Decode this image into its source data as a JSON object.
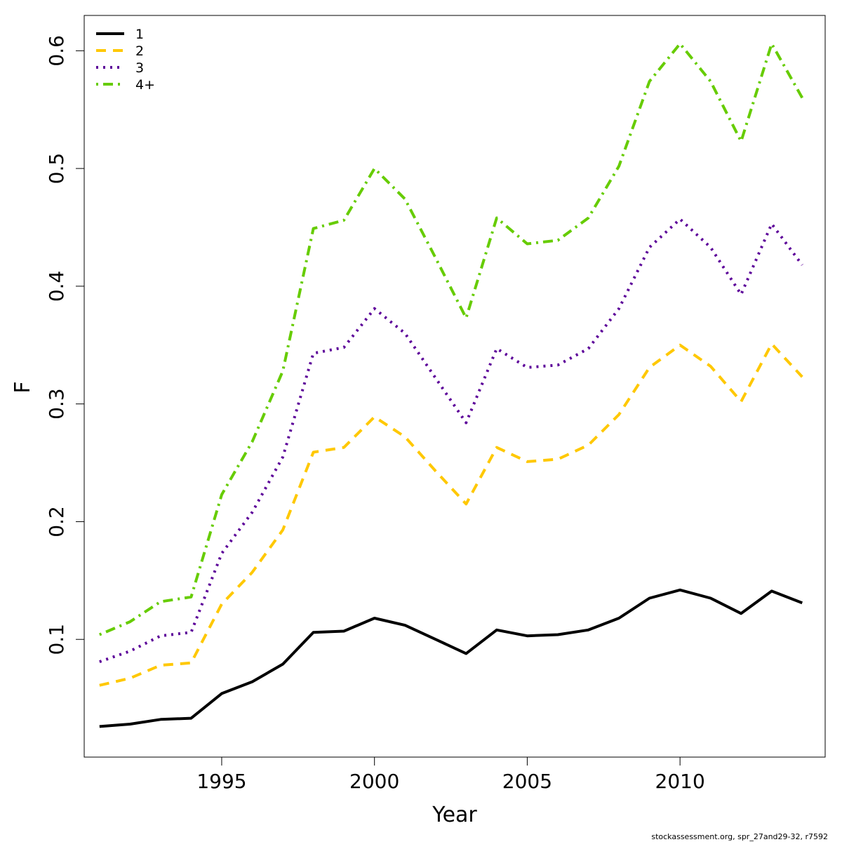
{
  "chart_data": {
    "type": "line",
    "title": "",
    "xlabel": "Year",
    "ylabel": "F",
    "xlim": [
      1990.5,
      2014.75
    ],
    "ylim": [
      0.0,
      0.63
    ],
    "xticks": [
      1995,
      2000,
      2005,
      2010
    ],
    "yticks": [
      0.1,
      0.2,
      0.3,
      0.4,
      0.5,
      0.6
    ],
    "grid": false,
    "legend_position": "top-left",
    "x": [
      1991,
      1992,
      1993,
      1994,
      1995,
      1996,
      1997,
      1998,
      1999,
      2000,
      2001,
      2002,
      2003,
      2004,
      2005,
      2006,
      2007,
      2008,
      2009,
      2010,
      2011,
      2012,
      2013,
      2014
    ],
    "series": [
      {
        "name": "1",
        "color": "#000000",
        "line_style": "solid",
        "values": [
          0.026,
          0.028,
          0.032,
          0.033,
          0.054,
          0.064,
          0.079,
          0.106,
          0.107,
          0.118,
          0.112,
          0.1,
          0.088,
          0.108,
          0.103,
          0.104,
          0.108,
          0.118,
          0.135,
          0.142,
          0.135,
          0.122,
          0.141,
          0.131
        ]
      },
      {
        "name": "2",
        "color": "#ffc800",
        "line_style": "dashed",
        "values": [
          0.061,
          0.067,
          0.078,
          0.08,
          0.13,
          0.157,
          0.193,
          0.259,
          0.263,
          0.289,
          0.272,
          0.243,
          0.215,
          0.263,
          0.251,
          0.253,
          0.265,
          0.291,
          0.331,
          0.35,
          0.332,
          0.302,
          0.351,
          0.323
        ]
      },
      {
        "name": "3",
        "color": "#5c0099",
        "line_style": "dotted",
        "values": [
          0.081,
          0.09,
          0.103,
          0.106,
          0.173,
          0.208,
          0.255,
          0.343,
          0.348,
          0.381,
          0.36,
          0.322,
          0.284,
          0.347,
          0.331,
          0.333,
          0.347,
          0.381,
          0.433,
          0.457,
          0.433,
          0.393,
          0.453,
          0.418
        ]
      },
      {
        "name": "4+",
        "color": "#66cc00",
        "line_style": "dotdash",
        "values": [
          0.104,
          0.115,
          0.132,
          0.136,
          0.223,
          0.268,
          0.328,
          0.449,
          0.456,
          0.5,
          0.474,
          0.424,
          0.373,
          0.458,
          0.436,
          0.439,
          0.458,
          0.502,
          0.574,
          0.606,
          0.574,
          0.523,
          0.606,
          0.56
        ]
      }
    ]
  },
  "footer": {
    "note": "stockassessment.org, spr_27and29-32, r7592"
  }
}
